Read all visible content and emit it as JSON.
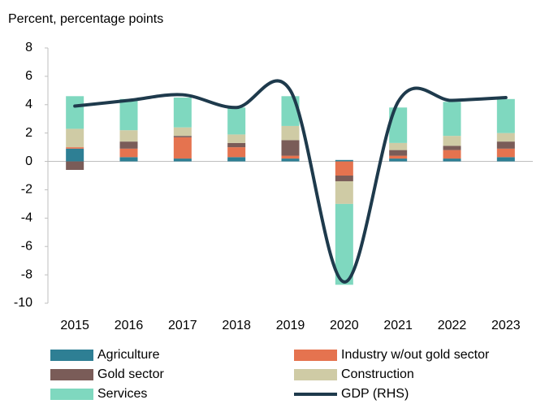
{
  "chart_data": {
    "type": "bar",
    "stacked": true,
    "title": "Percent, percentage points",
    "categories": [
      "2015",
      "2016",
      "2017",
      "2018",
      "2019",
      "2020",
      "2021",
      "2022",
      "2023"
    ],
    "series": [
      {
        "name": "Agriculture",
        "color": "#2e7f94",
        "values": [
          0.9,
          0.3,
          0.2,
          0.3,
          0.2,
          0.1,
          0.2,
          0.2,
          0.3
        ]
      },
      {
        "name": "Industry w/out gold sector",
        "color": "#e5734f",
        "values": [
          0.1,
          0.6,
          1.5,
          0.7,
          0.2,
          -1.0,
          0.2,
          0.6,
          0.6
        ]
      },
      {
        "name": "Gold sector",
        "color": "#7a5c58",
        "values": [
          -0.6,
          0.5,
          0.1,
          0.3,
          1.1,
          -0.4,
          0.4,
          0.3,
          0.5
        ]
      },
      {
        "name": "Construction",
        "color": "#cfcba5",
        "values": [
          1.3,
          0.8,
          0.6,
          0.6,
          1.0,
          -1.6,
          0.5,
          0.7,
          0.6
        ]
      },
      {
        "name": "Services",
        "color": "#7fd8bf",
        "values": [
          2.3,
          2.2,
          2.1,
          1.9,
          2.1,
          -5.7,
          2.5,
          2.4,
          2.4
        ]
      },
      {
        "name": "GDP (RHS)",
        "color": "#1e3a4c",
        "type": "line",
        "values": [
          3.9,
          4.3,
          4.7,
          3.8,
          5.0,
          -8.5,
          4.2,
          4.3,
          4.5
        ]
      }
    ],
    "ylim": [
      -10,
      8
    ],
    "yticks": [
      -10,
      -8,
      -6,
      -4,
      -2,
      0,
      2,
      4,
      6,
      8
    ]
  }
}
